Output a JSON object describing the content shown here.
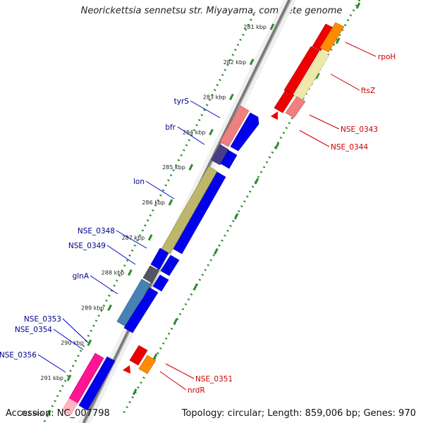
{
  "title": "Neorickettsia sennetsu str. Miyayama, complete genome",
  "footer": {
    "accession": "Accession: NC_007798",
    "summary": "Topology: circular; Length: 859,006 bp; Genes: 970"
  },
  "ticks": [
    "281 kbp",
    "282 kbp",
    "283 kbp",
    "284 kbp",
    "285 kbp",
    "286 kbp",
    "287 kbp",
    "288 kbp",
    "289 kbp",
    "290 kbp",
    "291 kbp",
    "292 kbp"
  ],
  "colors": {
    "forward_label": "#00008b",
    "reverse_label": "#cc0000",
    "backbone": "#777777",
    "scale_dots": "#2e8b2e"
  },
  "genes_forward": [
    {
      "name": "tyrS",
      "color": "#f08080"
    },
    {
      "name": "bfr",
      "color": "#483d8b"
    },
    {
      "name": "lon",
      "color": "#bdb76b"
    },
    {
      "name": "NSE_0348",
      "color": "#0000ee"
    },
    {
      "name": "NSE_0349",
      "color": "#555566"
    },
    {
      "name": "glnA",
      "color": "#4682b4"
    },
    {
      "name": "NSE_0353",
      "color": "#ff1493"
    },
    {
      "name": "NSE_0354",
      "color": "#ff69b4"
    },
    {
      "name": "NSE_0356",
      "color": "#ff69b4"
    }
  ],
  "genes_reverse": [
    {
      "name": "rpoH",
      "color": "#ff8c00"
    },
    {
      "name": "ftsZ",
      "color": "#eee8aa"
    },
    {
      "name": "NSE_0343",
      "color": "#ee0000"
    },
    {
      "name": "NSE_0344",
      "color": "#f08080"
    },
    {
      "name": "NSE_0351",
      "color": "#ee0000"
    },
    {
      "name": "nrdR",
      "color": "#ff8c00"
    }
  ]
}
